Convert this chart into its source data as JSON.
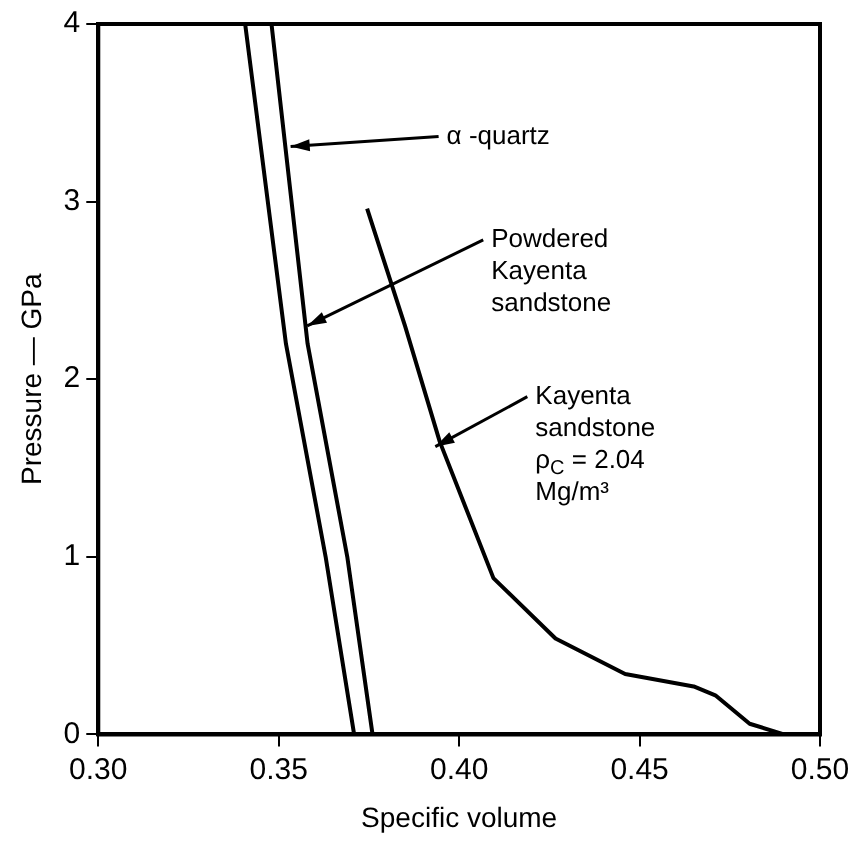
{
  "chart_data": {
    "type": "line",
    "xlabel": "Specific volume",
    "ylabel": "Pressure — GPa",
    "xlim": [
      0.3,
      0.5
    ],
    "ylim": [
      0,
      4
    ],
    "xticks": [
      {
        "value": 0.3,
        "label": "0.30"
      },
      {
        "value": 0.35,
        "label": "0.35"
      },
      {
        "value": 0.4,
        "label": "0.40"
      },
      {
        "value": 0.45,
        "label": "0.45"
      },
      {
        "value": 0.5,
        "label": "0.50"
      }
    ],
    "yticks": [
      0,
      1,
      2,
      3,
      4
    ],
    "grid": false,
    "legend": false,
    "marker": "none",
    "line_style": "solid",
    "series": [
      {
        "color": "#000000",
        "x": [
          0.3407,
          0.352,
          0.363,
          0.3709
        ],
        "values": [
          4,
          2.2,
          1,
          0
        ]
      },
      {
        "color": "#000000",
        "x": [
          0.348,
          0.358,
          0.369,
          0.376
        ],
        "values": [
          4,
          2.2,
          1,
          0
        ]
      },
      {
        "color": "#000000",
        "x": [
          0.3745,
          0.385,
          0.3946,
          0.4095,
          0.4267,
          0.446,
          0.465,
          0.471,
          0.4805,
          0.49
        ],
        "values": [
          2.96,
          2.3,
          1.65,
          0.88,
          0.54,
          0.34,
          0.27,
          0.22,
          0.06,
          0
        ]
      }
    ],
    "annotations": [
      {
        "text": "α -quartz",
        "x": 0.3533,
        "y": 3.31
      },
      {
        "text": "Powdered Kayenta sandstone",
        "x": 0.3579,
        "y": 2.3
      },
      {
        "text": "Kayenta sandstone ρ$_{C}$ = 2.04 Mg/m³",
        "x": 0.3934,
        "y": 1.62
      }
    ]
  }
}
